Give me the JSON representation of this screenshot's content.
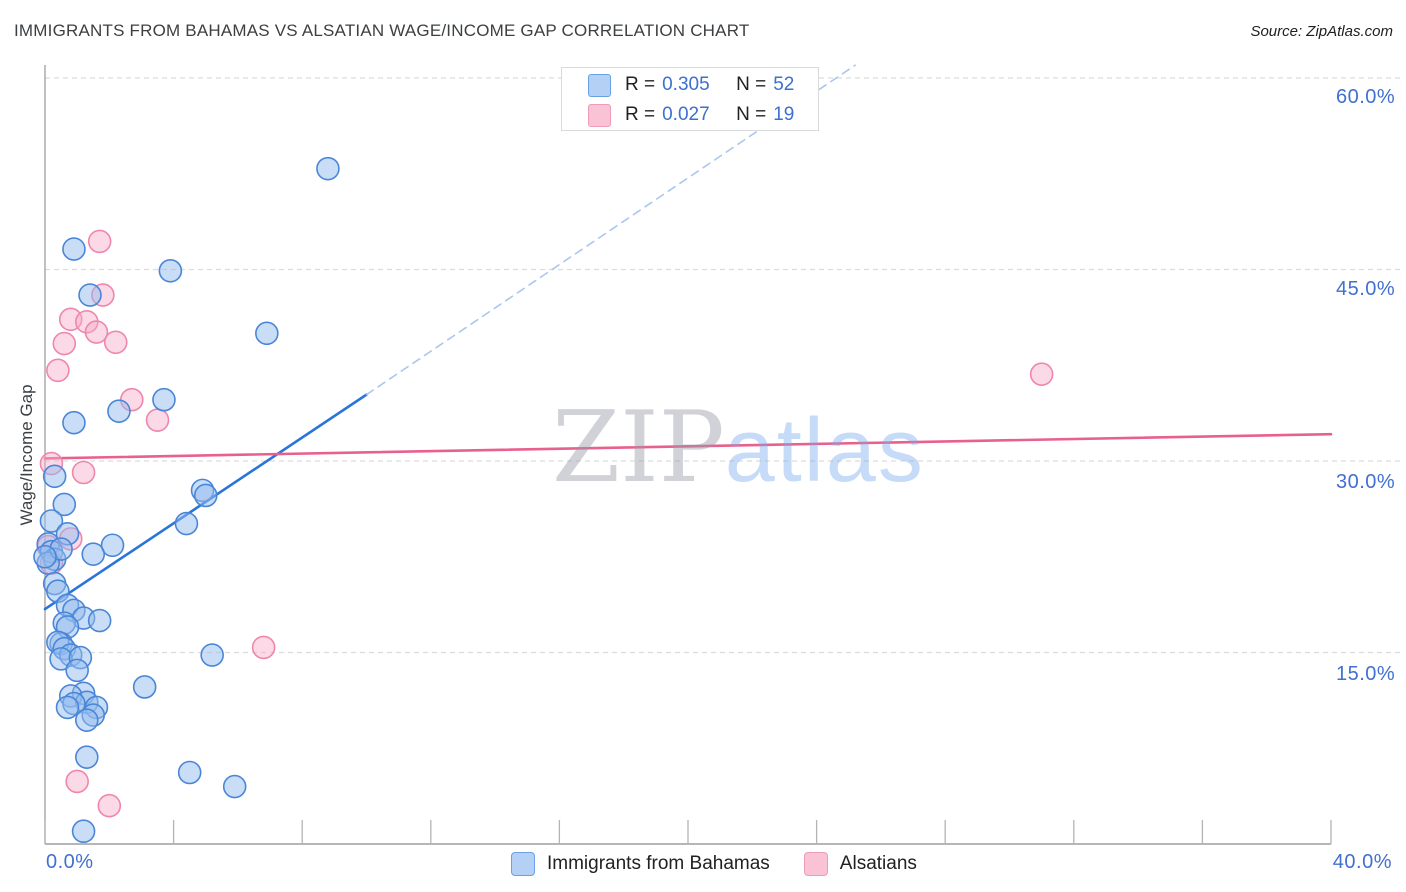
{
  "header": {
    "title": "IMMIGRANTS FROM BAHAMAS VS ALSATIAN WAGE/INCOME GAP CORRELATION CHART",
    "source": "Source: ZipAtlas.com"
  },
  "watermark": {
    "zip": "ZIP",
    "atlas": "atlas"
  },
  "legend_box": {
    "rows": [
      {
        "r_label": "R =",
        "r_value": "0.305",
        "n_label": "N =",
        "n_value": "52"
      },
      {
        "r_label": "R =",
        "r_value": "0.027",
        "n_label": "N =",
        "n_value": "19"
      }
    ]
  },
  "axes": {
    "y_label": "Wage/Income Gap",
    "x_min_label": "0.0%",
    "x_max_label": "40.0%",
    "y_tick_labels": [
      "60.0%",
      "45.0%",
      "30.0%",
      "15.0%"
    ]
  },
  "bottom_legend": [
    {
      "label": "Immigrants from Bahamas"
    },
    {
      "label": "Alsatians"
    }
  ],
  "chart_data": {
    "type": "scatter",
    "title": "Immigrants from Bahamas vs Alsatian Wage/Income Gap",
    "xlabel": "",
    "ylabel": "Wage/Income Gap",
    "x_range": [
      0,
      40
    ],
    "y_range": [
      0,
      61
    ],
    "x_ticks_pct": [
      0,
      4,
      8,
      12,
      16,
      20,
      24,
      28,
      32,
      36,
      40
    ],
    "y_gridlines_pct": [
      15,
      30,
      45,
      60
    ],
    "grid": "dashed",
    "legend_position": "top-center",
    "series": [
      {
        "name": "Alsatians",
        "r": 0.027,
        "n": 19,
        "stroke": "#ef87ab",
        "fill": "rgba(247,170,200,0.45)",
        "points": [
          [
            1.7,
            47.2
          ],
          [
            1.8,
            43.0
          ],
          [
            0.8,
            41.1
          ],
          [
            1.3,
            40.9
          ],
          [
            1.6,
            40.1
          ],
          [
            2.2,
            39.3
          ],
          [
            0.6,
            39.2
          ],
          [
            0.4,
            37.1
          ],
          [
            2.7,
            34.8
          ],
          [
            3.5,
            33.2
          ],
          [
            0.2,
            29.8
          ],
          [
            1.2,
            29.1
          ],
          [
            0.8,
            23.9
          ],
          [
            0.1,
            23.3
          ],
          [
            0.2,
            22.0
          ],
          [
            6.8,
            15.4
          ],
          [
            1.0,
            4.9
          ],
          [
            2.0,
            3.0
          ],
          [
            31.0,
            36.8
          ]
        ]
      },
      {
        "name": "Immigrants from Bahamas",
        "r": 0.305,
        "n": 52,
        "stroke": "#4a86d8",
        "fill": "rgba(147,187,238,0.5)",
        "points": [
          [
            8.8,
            52.9
          ],
          [
            0.9,
            46.6
          ],
          [
            3.9,
            44.9
          ],
          [
            1.4,
            43.0
          ],
          [
            6.9,
            40.0
          ],
          [
            3.7,
            34.8
          ],
          [
            2.3,
            33.9
          ],
          [
            0.9,
            33.0
          ],
          [
            0.3,
            28.8
          ],
          [
            4.9,
            27.7
          ],
          [
            5.0,
            27.3
          ],
          [
            0.6,
            26.6
          ],
          [
            0.2,
            25.3
          ],
          [
            4.4,
            25.1
          ],
          [
            0.7,
            24.3
          ],
          [
            0.1,
            23.5
          ],
          [
            2.1,
            23.4
          ],
          [
            0.2,
            22.9
          ],
          [
            1.5,
            22.7
          ],
          [
            0.3,
            22.3
          ],
          [
            0.1,
            22.0
          ],
          [
            0.5,
            23.1
          ],
          [
            0.0,
            22.5
          ],
          [
            0.3,
            20.4
          ],
          [
            0.4,
            19.8
          ],
          [
            0.7,
            18.7
          ],
          [
            0.9,
            18.3
          ],
          [
            1.2,
            17.7
          ],
          [
            0.6,
            17.3
          ],
          [
            0.7,
            17.0
          ],
          [
            1.7,
            17.5
          ],
          [
            0.5,
            15.7
          ],
          [
            0.4,
            15.8
          ],
          [
            0.6,
            15.3
          ],
          [
            0.8,
            14.8
          ],
          [
            0.5,
            14.5
          ],
          [
            1.1,
            14.6
          ],
          [
            1.0,
            13.6
          ],
          [
            5.2,
            14.8
          ],
          [
            3.1,
            12.3
          ],
          [
            1.2,
            11.8
          ],
          [
            0.8,
            11.6
          ],
          [
            1.3,
            11.1
          ],
          [
            0.9,
            11.0
          ],
          [
            0.7,
            10.7
          ],
          [
            1.6,
            10.7
          ],
          [
            1.5,
            10.1
          ],
          [
            1.3,
            9.7
          ],
          [
            1.3,
            6.8
          ],
          [
            4.5,
            5.6
          ],
          [
            5.9,
            4.5
          ],
          [
            1.2,
            1.0
          ]
        ]
      }
    ],
    "trend_lines": [
      {
        "series": "Immigrants from Bahamas",
        "style": "solid",
        "color": "#2a74da",
        "width": 2.6,
        "x1": 0,
        "y1": 18.4,
        "x2": 10,
        "y2": 35.2
      },
      {
        "series": "Immigrants from Bahamas",
        "style": "dashed",
        "color": "#a9c7ef",
        "width": 1.6,
        "x1": 10,
        "y1": 35.2,
        "x2": 25.2,
        "y2": 61.0
      },
      {
        "series": "Alsatians",
        "style": "solid",
        "color": "#e8618c",
        "width": 2.6,
        "x1": 0,
        "y1": 30.2,
        "x2": 40,
        "y2": 32.1
      }
    ]
  }
}
